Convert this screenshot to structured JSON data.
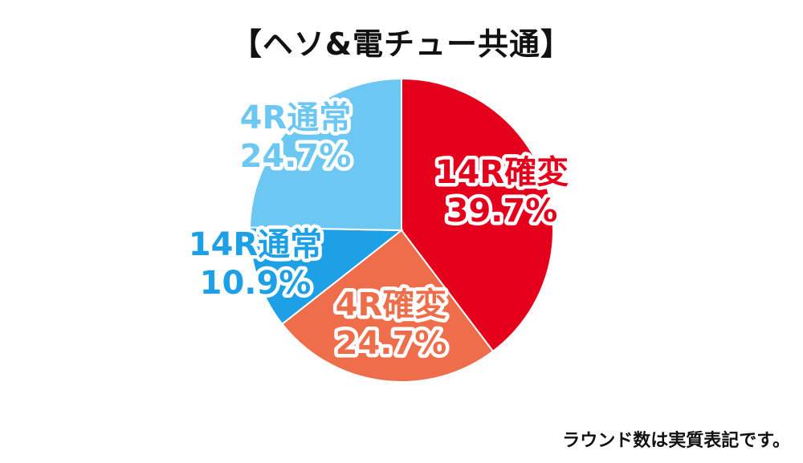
{
  "chart_data": {
    "type": "pie",
    "title": "【ヘソ&電チュー共通】",
    "start_angle_deg": 0,
    "direction": "clockwise",
    "slices": [
      {
        "label": "14R確変",
        "value": 39.7,
        "value_text": "39.7%",
        "color": "#e5001c",
        "text_color": "#e5001c"
      },
      {
        "label": "4R確変",
        "value": 24.7,
        "value_text": "24.7%",
        "color": "#ee6d4a",
        "text_color": "#ee6d4a"
      },
      {
        "label": "14R通常",
        "value": 10.9,
        "value_text": "10.9%",
        "color": "#1ea0e6",
        "text_color": "#1ea0e6"
      },
      {
        "label": "4R通常",
        "value": 24.7,
        "value_text": "24.7%",
        "color": "#6cc8f3",
        "text_color": "#6cc8f3"
      }
    ]
  },
  "footnote": "ラウンド数は実質表記です。"
}
